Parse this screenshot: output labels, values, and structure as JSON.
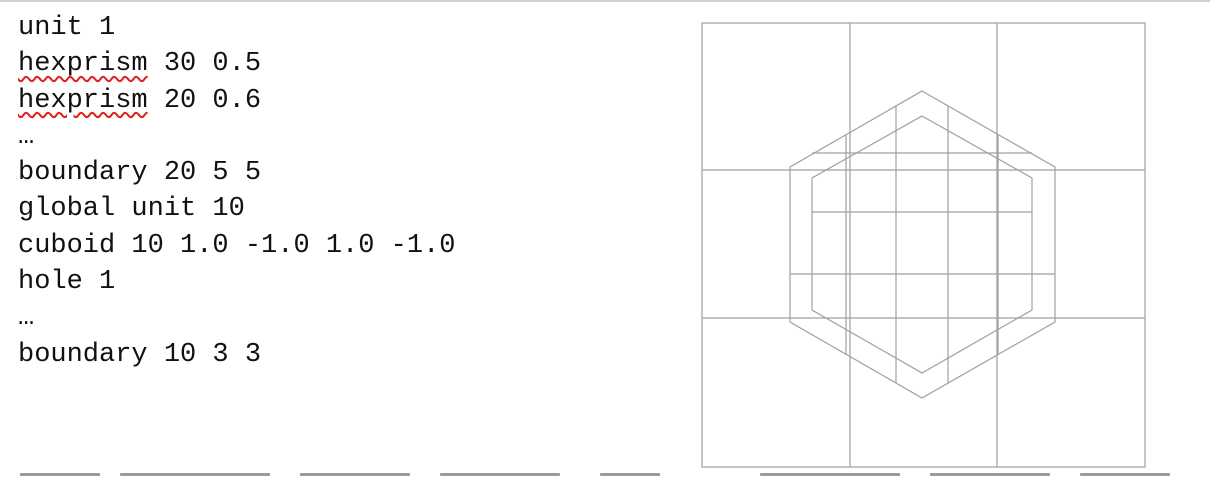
{
  "code": {
    "lines": [
      {
        "keyword": "unit",
        "args": " 1",
        "flagged": false
      },
      {
        "keyword": "hexprism",
        "args": " 30 0.5",
        "flagged": true
      },
      {
        "keyword": "hexprism",
        "args": " 20 0.6",
        "flagged": true
      },
      {
        "keyword": "…",
        "args": "",
        "flagged": false
      },
      {
        "keyword": "boundary",
        "args": " 20 5 5",
        "flagged": false
      },
      {
        "keyword": "global unit",
        "args": " 10",
        "flagged": false
      },
      {
        "keyword": "cuboid",
        "args": " 10 1.0 -1.0 1.0 -1.0",
        "flagged": false
      },
      {
        "keyword": "hole",
        "args": " 1",
        "flagged": false
      },
      {
        "keyword": "…",
        "args": "",
        "flagged": false
      },
      {
        "keyword": "boundary",
        "args": " 10 3 3",
        "flagged": false
      }
    ]
  },
  "figure": {
    "grid_cells": [
      3,
      3
    ],
    "outer_hex_inner_grid": [
      5,
      5
    ],
    "line_color": "#a0a0a0"
  },
  "colors": {
    "text": "#111111",
    "spellcheck": "#e02020"
  }
}
